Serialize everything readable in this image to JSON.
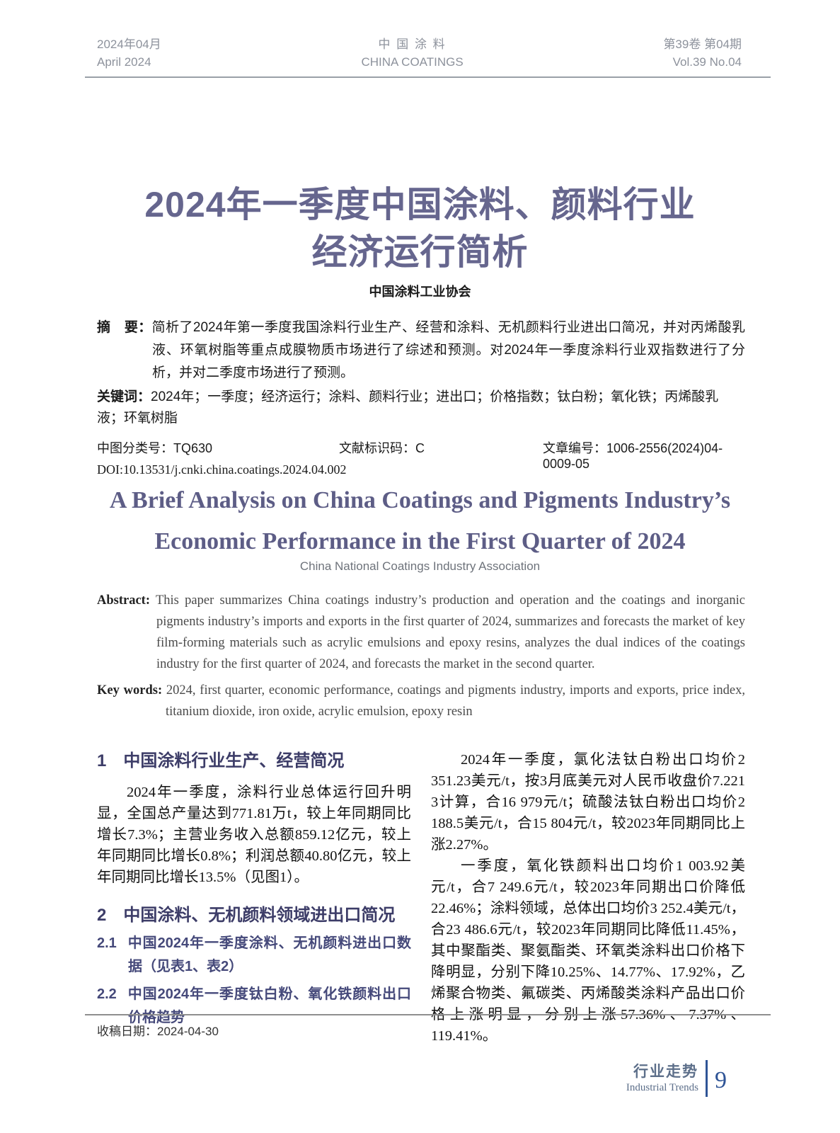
{
  "journal": {
    "date_cn": "2024年04月",
    "date_en": "April 2024",
    "name_cn": "中 国 涂 料",
    "name_en": "CHINA COATINGS",
    "issue_cn": "第39卷 第04期",
    "issue_en": "Vol.39 No.04"
  },
  "article": {
    "title_line1": "2024年一季度中国涂料、颜料行业",
    "title_line2": "经济运行简析",
    "author_cn": "中国涂料工业协会",
    "abstract_label": "摘　要：",
    "abstract_cn": "简析了2024年第一季度我国涂料行业生产、经营和涂料、无机颜料行业进出口简况，并对丙烯酸乳液、环氧树脂等重点成膜物质市场进行了综述和预测。对2024年一季度涂料行业双指数进行了分析，并对二季度市场进行了预测。",
    "keywords_label": "关键词：",
    "keywords_cn": "2024年；一季度；经济运行；涂料、颜料行业；进出口；价格指数；钛白粉；氧化铁；丙烯酸乳液；环氧树脂",
    "clc": "中图分类号：TQ630",
    "doc_code": "文献标识码：C",
    "article_id": "文章编号：1006-2556(2024)04-0009-05",
    "doi": "DOI:10.13531/j.cnki.china.coatings.2024.04.002",
    "title_en_line1": "A Brief Analysis on China Coatings and Pigments Industry’s",
    "title_en_line2": "Economic Performance in the First Quarter of 2024",
    "author_en": "China National Coatings Industry Association",
    "abstract_en_label": "Abstract:",
    "abstract_en": "This paper summarizes China coatings industry’s production and operation and the coatings and inorganic pigments industry’s imports and exports in the first quarter of 2024, summarizes and forecasts the market of key film-forming materials such as acrylic emulsions and epoxy resins, analyzes the dual indices of the coatings industry for the first quarter of 2024, and forecasts the market in the second quarter.",
    "keywords_en_label": "Key words:",
    "keywords_en": "2024, first quarter, economic performance, coatings and pigments industry, imports and exports, price index, titanium dioxide, iron oxide, acrylic emulsion, epoxy resin"
  },
  "body": {
    "sections": [
      {
        "num": "1",
        "title": "中国涂料行业生产、经营简况"
      },
      {
        "num": "2",
        "title": "中国涂料、无机颜料领域进出口简况"
      }
    ],
    "section1_para": "2024年一季度，涂料行业总体运行回升明显，全国总产量达到771.81万t，较上年同期同比增长7.3%；主营业务收入总额859.12亿元，较上年同期同比增长0.8%；利润总额40.80亿元，较上年同期同比增长13.5%（见图1）。",
    "subsections": [
      {
        "num": "2.1",
        "title": "中国2024年一季度涂料、无机颜料进出口数据（见表1、表2）"
      },
      {
        "num": "2.2",
        "title": "中国2024年一季度钛白粉、氧化铁颜料出口价格趋势"
      }
    ],
    "right_para1": "2024年一季度，氯化法钛白粉出口均价2 351.23美元/t，按3月底美元对人民币收盘价7.221 3计算，合16 979元/t；硫酸法钛白粉出口均价2 188.5美元/t，合15 804元/t，较2023年同期同比上涨2.27%。",
    "right_para2": "一季度，氧化铁颜料出口均价1 003.92美元/t，合7 249.6元/t，较2023年同期出口价降低22.46%；涂料领域，总体出口均价3 252.4美元/t，合23 486.6元/t，较2023年同期同比降低11.45%，其中聚酯类、聚氨酯类、环氧类涂料出口价格下降明显，分别下降10.25%、14.77%、17.92%，乙烯聚合物类、氟碳类、丙烯酸类涂料产品出口价格上涨明显，分别上涨57.36%、7.37%、119.41%。"
  },
  "footnote": {
    "received_date": "收稿日期：2024-04-30"
  },
  "footer": {
    "column_cn": "行业走势",
    "column_en": "Industrial Trends",
    "page_number": "9"
  },
  "colors": {
    "title_accent": "#66668e",
    "en_title_accent": "#5d5d86",
    "section_heading": "#3d3d68",
    "subsection_heading": "#45497a",
    "header_gray": "#8d929c",
    "footer_blue": "#2f5496",
    "footer_label_gray_blue": "#5d6f8a"
  }
}
